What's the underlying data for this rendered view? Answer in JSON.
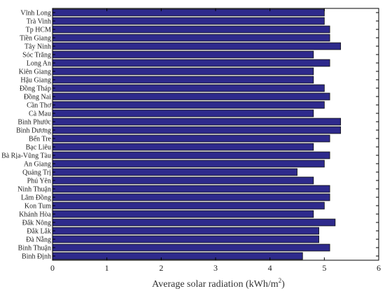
{
  "chart_data": {
    "type": "bar",
    "orientation": "horizontal",
    "xlabel": "Average solar radiation (kWh/m",
    "xlabel_sup": "2",
    "xlabel_end": ")",
    "xlim": [
      0,
      6
    ],
    "xticks": [
      "0",
      "1",
      "2",
      "3",
      "4",
      "5",
      "6"
    ],
    "bar_color": "#2e2a8c",
    "categories": [
      "Vĩnh Long",
      "Trà Vinh",
      "Tp HCM",
      "Tiền Giang",
      "Tây Ninh",
      "Sóc Trăng",
      "Long An",
      "Kiên Giang",
      "Hậu Giang",
      "Đồng Tháp",
      "Đồng Nai",
      "Cần Thơ",
      "Cà Mau",
      "Bình Phước",
      "Bình Dương",
      "Bến Tre",
      "Bạc Liêu",
      "Bà Rịa-Vũng Tàu",
      "An Giang",
      "Quảng Trị",
      "Phú Yên",
      "Ninh Thuận",
      "Lâm Đồng",
      "Kon Tum",
      "Khánh Hòa",
      "Đắk Nông",
      "Đắk Lắk",
      "Đà Nẵng",
      "Bình Thuận",
      "Bình Định"
    ],
    "values": [
      5.0,
      5.0,
      5.1,
      5.1,
      5.3,
      4.8,
      5.1,
      4.8,
      4.8,
      5.0,
      5.1,
      5.0,
      4.8,
      5.3,
      5.3,
      5.1,
      4.8,
      5.1,
      5.0,
      4.5,
      4.8,
      5.1,
      5.1,
      5.0,
      4.8,
      5.2,
      4.9,
      4.9,
      5.1,
      4.6
    ],
    "grid": false,
    "legend": "none"
  }
}
